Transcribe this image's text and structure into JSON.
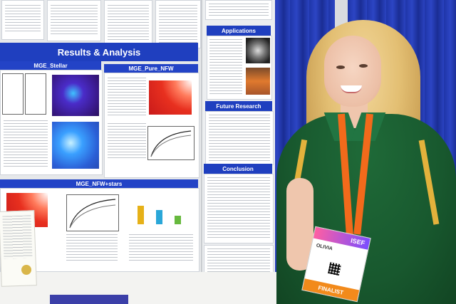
{
  "poster": {
    "results_title": "Results & Analysis",
    "panel_stellar": "MGE_Stellar",
    "panel_pure_nfw": "MGE_Pure_NFW",
    "panel_nfw_stars": "MGE_NFW+stars",
    "applications": "Applications",
    "future_research": "Future Research",
    "conclusion": "Conclusion"
  },
  "badge": {
    "name": "OLIVIA",
    "event": "ISEF",
    "status": "FINALIST"
  },
  "colors": {
    "board_blue": "#1f3fbf",
    "curtain_blue": "#2c45c4",
    "shirt_green": "#18582e",
    "lanyard_orange": "#f26a1b"
  }
}
